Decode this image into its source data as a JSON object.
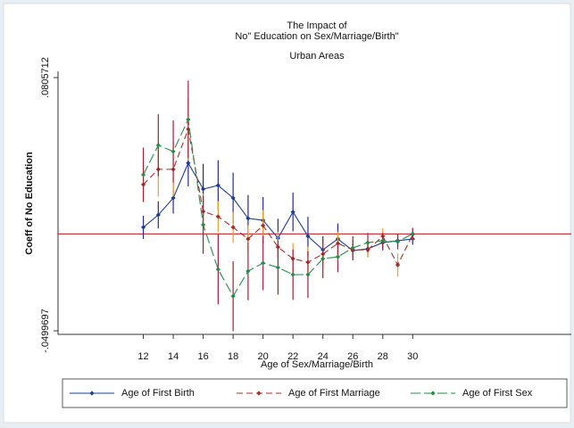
{
  "chart_data": {
    "type": "line",
    "title": [
      "The Impact of",
      "No\" Education on Sex/Marriage/Birth\""
    ],
    "subtitle": "Urban Areas",
    "y_label": "Coeff of No Education",
    "x_label": "Age of Sex/Marriage/Birth",
    "x": [
      12,
      13,
      14,
      15,
      16,
      17,
      18,
      19,
      20,
      21,
      22,
      23,
      24,
      25,
      26,
      27,
      28,
      29,
      30
    ],
    "xlim": [
      6.3,
      40.6
    ],
    "xticks": [
      12,
      14,
      16,
      18,
      20,
      22,
      24,
      26,
      28,
      30
    ],
    "ylim": [
      -0.0518,
      0.0838
    ],
    "yticks": [
      {
        "value": -0.0499697,
        "label": "-.0499697"
      },
      {
        "value": 0.0805712,
        "label": ".0805712"
      }
    ],
    "reference_line": 0,
    "reference_color": "#c8202a",
    "legend": "bottom",
    "series": [
      {
        "name": "Age of First Birth",
        "color": "#1f3d8f",
        "error_color": "#2a2a8a",
        "dash": "none",
        "values": [
          0.0034,
          0.0098,
          0.0185,
          0.0365,
          0.0231,
          0.025,
          0.0185,
          0.008,
          0.007,
          -0.0022,
          0.0113,
          -0.0012,
          -0.0082,
          -0.0026,
          -0.0086,
          -0.0077,
          -0.0045,
          -0.0035,
          -0.0026
        ],
        "errors": [
          0.006,
          0.007,
          0.008,
          0.012,
          0.013,
          0.013,
          0.013,
          0.012,
          0.012,
          0.01,
          0.01,
          0.01,
          0.007,
          0.008,
          0.005,
          0.004,
          0.004,
          0.003,
          0.003
        ]
      },
      {
        "name": "Age of First Marriage",
        "color": "#a0302a",
        "error_color": "#e8a030",
        "dash": "7,4",
        "values": [
          0.0254,
          0.0333,
          0.0333,
          0.054,
          0.0116,
          0.0089,
          0.0034,
          -0.0026,
          0.0043,
          -0.0068,
          -0.0128,
          -0.0146,
          -0.0104,
          -0.0049,
          -0.0082,
          -0.0082,
          -0.0012,
          -0.016,
          -0.0003
        ],
        "errors": [
          0.009,
          0.014,
          0.014,
          0.016,
          0.009,
          0.008,
          0.008,
          0.007,
          0.008,
          0.008,
          0.008,
          0.008,
          0.007,
          0.006,
          0.005,
          0.004,
          0.004,
          0.006,
          0.003
        ]
      },
      {
        "name": "Age of First Sex",
        "color": "#2a8a4a",
        "error_color": "#a0203a",
        "dash": "11,4",
        "values": [
          0.0305,
          0.0457,
          0.0425,
          0.059,
          0.0047,
          -0.0183,
          -0.0321,
          -0.0192,
          -0.015,
          -0.0173,
          -0.021,
          -0.021,
          -0.0128,
          -0.0118,
          -0.0072,
          -0.0045,
          -0.0035,
          -0.004,
          0.0001
        ],
        "errors": [
          0.014,
          0.016,
          0.016,
          0.02,
          0.015,
          0.018,
          0.018,
          0.015,
          0.014,
          0.014,
          0.013,
          0.012,
          0.01,
          0.008,
          0.006,
          0.005,
          0.004,
          0.004,
          0.003
        ]
      }
    ]
  }
}
